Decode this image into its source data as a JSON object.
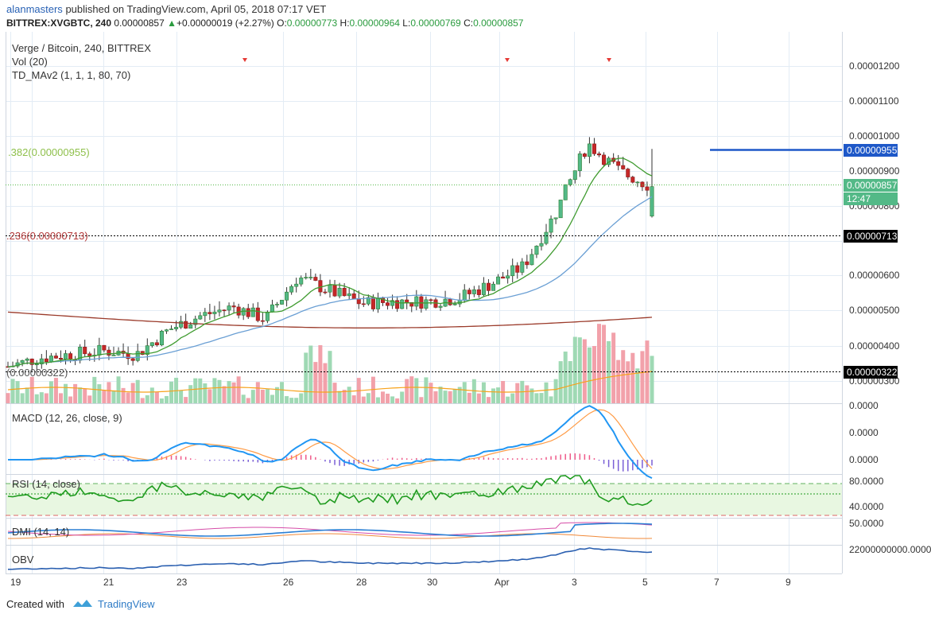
{
  "header": {
    "user": "alanmasters",
    "published": "published on TradingView.com, April 05, 2018 07:17 VET",
    "symbol": "BITTREX:XVGBTC, 240",
    "last": "0.00000857",
    "change": "+0.00000019 (+2.27%)",
    "o_label": "O:",
    "o": "0.00000773",
    "h_label": "H:",
    "h": "0.00000964",
    "l_label": "L:",
    "l": "0.00000769",
    "c_label": "C:",
    "c": "0.00000857"
  },
  "legend": {
    "title": "Verge / Bitcoin, 240, BITTREX",
    "vol": "Vol (20)",
    "td": "TD_MAv2 (1, 1, 1, 80, 70)"
  },
  "fib": {
    "f382": ".382(0.00000955)",
    "f236": ".236(0.00000713)",
    "f0": "(0.00000322)"
  },
  "price_axis": {
    "ticks": [
      "0.00001200",
      "0.00001100",
      "0.00001000",
      "0.00000900",
      "0.00000800",
      "0.00000600",
      "0.00000500",
      "0.00000400",
      "0.00000300"
    ],
    "tag_955": "0.00000955",
    "tag_857": "0.00000857",
    "tag_time": "12:47",
    "tag_713": "0.00000713",
    "tag_322": "0.00000322"
  },
  "panes": {
    "macd_title": "MACD (12, 26, close, 9)",
    "macd_ticks": [
      "0.0000",
      "0.0000",
      "0.0000"
    ],
    "rsi_title": "RSI (14, close)",
    "rsi_ticks": [
      "80.0000",
      "40.0000"
    ],
    "dmi_title": "DMI (14, 14)",
    "dmi_ticks": [
      "50.0000"
    ],
    "obv_title": "OBV",
    "obv_ticks": [
      "22000000000.0000"
    ]
  },
  "time_axis": {
    "labels": [
      "19",
      "21",
      "23",
      "26",
      "28",
      "30",
      "Apr",
      "3",
      "5",
      "7",
      "9"
    ]
  },
  "footer": {
    "created": "Created with",
    "brand": "TradingView"
  },
  "colors": {
    "up": "#53b987",
    "down": "#eb4d5c",
    "sma_green": "#3f9b2f",
    "sma_blue": "#6a9fd4",
    "sma_brown": "#9b3b2b",
    "vol_ma": "#f7a21b",
    "macd": "#2196f3",
    "signal": "#ff9b45",
    "rsi": "#1f9b1f",
    "obv": "#2a5fb0",
    "fib_line": "#1e58c8"
  },
  "chart_data": {
    "type": "candlestick",
    "symbol": "BITTREX:XVGBTC",
    "interval": "240",
    "x_axis_labels": [
      "19",
      "21",
      "23",
      "26",
      "28",
      "30",
      "Apr",
      "3",
      "5",
      "7",
      "9"
    ],
    "y_range": [
      2.8e-06,
      1.26e-05
    ],
    "last_candle": {
      "open": 7.73e-06,
      "high": 9.64e-06,
      "low": 7.69e-06,
      "close": 8.57e-06
    },
    "fib_levels": [
      {
        "label": ".382",
        "value": 9.55e-06
      },
      {
        "label": ".236",
        "value": 7.13e-06
      },
      {
        "label": "0",
        "value": 3.22e-06
      }
    ],
    "close_path": [
      {
        "date": "18",
        "close": 3.45e-06
      },
      {
        "date": "19",
        "close": 3.7e-06
      },
      {
        "date": "20",
        "close": 3.8e-06
      },
      {
        "date": "21",
        "close": 3.9e-06
      },
      {
        "date": "22",
        "close": 3.8e-06
      },
      {
        "date": "23",
        "close": 4.5e-06
      },
      {
        "date": "24",
        "close": 4.9e-06
      },
      {
        "date": "25",
        "close": 5.15e-06
      },
      {
        "date": "26",
        "close": 4.8e-06
      },
      {
        "date": "26.5",
        "close": 6e-06
      },
      {
        "date": "27",
        "close": 5.6e-06
      },
      {
        "date": "28",
        "close": 5.25e-06
      },
      {
        "date": "29",
        "close": 5.3e-06
      },
      {
        "date": "30",
        "close": 5.3e-06
      },
      {
        "date": "31",
        "close": 5.4e-06
      },
      {
        "date": "Apr",
        "close": 5.8e-06
      },
      {
        "date": "2",
        "close": 6.3e-06
      },
      {
        "date": "3",
        "close": 7.8e-06
      },
      {
        "date": "3.5",
        "close": 9.8e-06
      },
      {
        "date": "4",
        "close": 9e-06
      },
      {
        "date": "5",
        "close": 8.57e-06
      }
    ]
  }
}
